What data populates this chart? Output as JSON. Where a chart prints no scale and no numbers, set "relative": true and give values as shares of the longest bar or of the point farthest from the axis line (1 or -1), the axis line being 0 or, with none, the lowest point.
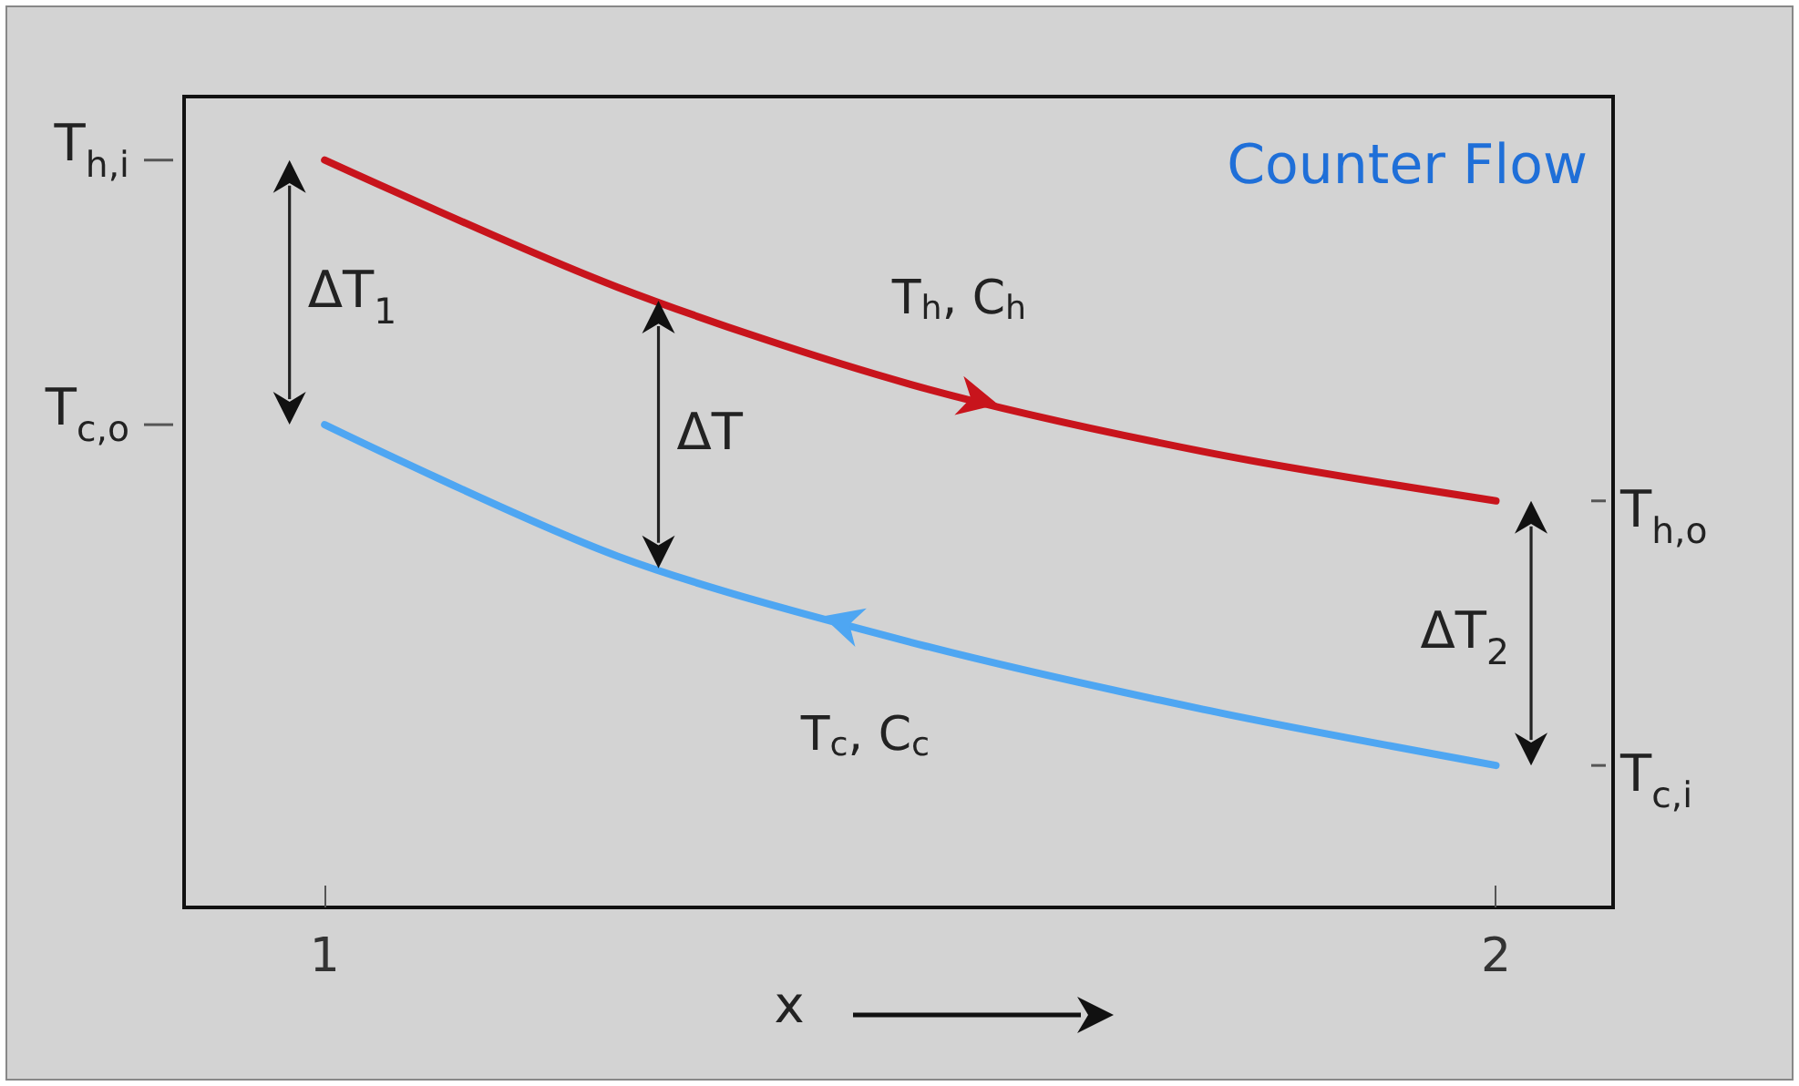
{
  "chart_data": {
    "type": "line",
    "title": "Counter Flow",
    "xlabel": "x",
    "relative": true,
    "xlim": [
      0.88,
      2.1
    ],
    "xticks": [
      1,
      2
    ],
    "grid": false,
    "legend": false,
    "marker": "none",
    "line_style": "solid",
    "tick_labels": "x",
    "series": [
      {
        "name": "T$_{h}$, C$_{h}$",
        "color": "#c8141c",
        "x": [
          1,
          1.25,
          1.5,
          1.75,
          2
        ],
        "values": [
          1.0,
          0.83,
          0.7,
          0.61,
          0.544
        ]
      },
      {
        "name": "T$_{c}$, C$_{c}$",
        "color": "#4ea6f2",
        "x": [
          2,
          1.75,
          1.5,
          1.25,
          1
        ],
        "values": [
          0.19,
          0.265,
          0.355,
          0.47,
          0.646
        ]
      }
    ],
    "annotations": [
      "T$_{h,i}$",
      "T$_{c,o}$",
      "T$_{h,o}$",
      "T$_{c,i}$",
      "ΔT$_{1}$",
      "ΔT",
      "ΔT$_{2}$"
    ]
  }
}
